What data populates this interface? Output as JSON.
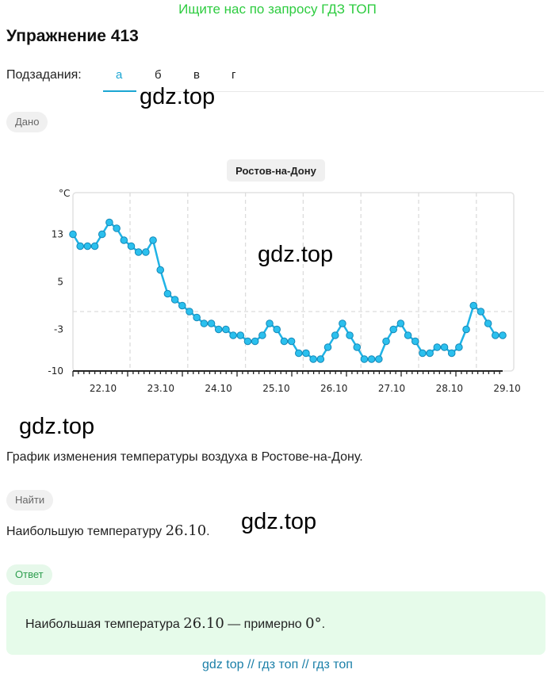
{
  "promo": "Ищите нас по запросу ГДЗ ТОП",
  "title": "Упражнение 413",
  "subtasks": {
    "label": "Подзадания:",
    "tabs": [
      "а",
      "б",
      "в",
      "г"
    ],
    "active": "а"
  },
  "watermark": "gdz.top",
  "given_label": "Дано",
  "description": "График изменения температуры воздуха в Ростове-на-Дону.",
  "find_label": "Найти",
  "find_text": "Наибольшую температуру ",
  "find_date": "26.10",
  "find_end": ".",
  "answer_label": "Ответ",
  "answer_text": "Наибольшая температура ",
  "answer_date": "26.10",
  "answer_mid": " — примерно ",
  "answer_value": "0°",
  "answer_end": ".",
  "footer": "gdz top  //  гдз топ  //  гдз топ",
  "colors": {
    "accent": "#1ba6d3",
    "promo": "#2ecc40",
    "line": "#1fb3e6",
    "answer_bg": "#e6fbea"
  },
  "chart_data": {
    "type": "line",
    "title": "Ростов-на-Дону",
    "ylabel": "°C",
    "xlabel": "",
    "ylim": [
      -10,
      20
    ],
    "yticks": [
      13,
      5,
      -3,
      -10
    ],
    "xtick_labels": [
      "22.10",
      "23.10",
      "24.10",
      "25.10",
      "26.10",
      "27.10",
      "28.10",
      "29.10"
    ],
    "days": [
      "22.10",
      "23.10",
      "24.10",
      "25.10",
      "26.10",
      "27.10",
      "28.10"
    ],
    "grid": true,
    "series": [
      {
        "values": [
          13,
          11,
          11,
          11,
          13,
          15,
          14,
          12,
          11,
          10,
          10,
          12,
          7,
          3,
          2,
          1,
          0,
          -1,
          -2,
          -2,
          -3,
          -3,
          -4,
          -4,
          -5,
          -5,
          -4,
          -2,
          -3,
          -5,
          -5,
          -7,
          -7,
          -8,
          -8,
          -6,
          -4,
          -2,
          -4,
          -6,
          -8,
          -8,
          -8,
          -5,
          -3,
          -2,
          -4,
          -5,
          -7,
          -7,
          -6,
          -6,
          -7,
          -6,
          -3,
          1,
          0,
          -2,
          -4,
          -4
        ],
        "points_per_day": 8
      }
    ]
  }
}
